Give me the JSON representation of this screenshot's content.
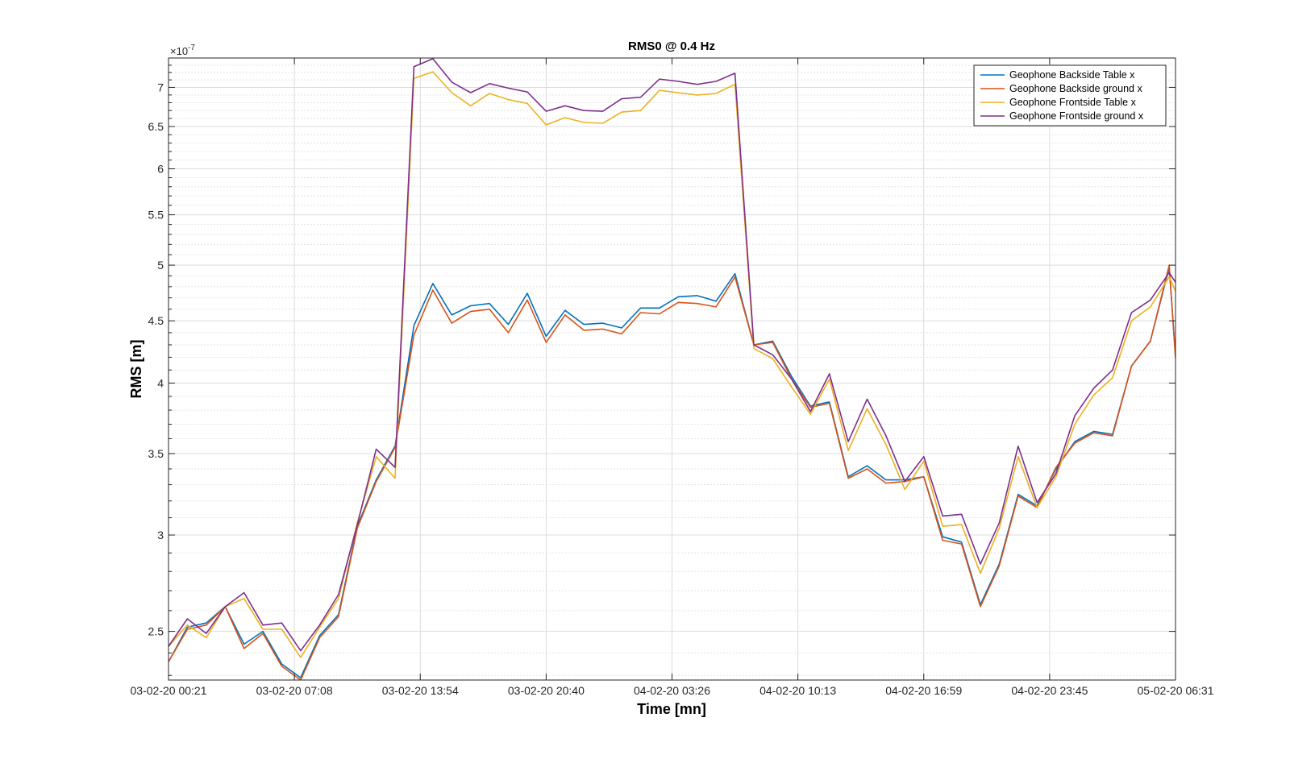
{
  "chart_data": {
    "type": "line",
    "title": "RMS0 @ 0.4 Hz",
    "xlabel": "Time [mn]",
    "ylabel": "RMS [m]",
    "y_exponent_label": "×10",
    "y_exponent_power": "-7",
    "y_scale": "log",
    "ylim": [
      2.28,
      7.4
    ],
    "xlim": [
      0,
      80
    ],
    "grid": "on",
    "minor_grid": "on",
    "legend_location": "top-right",
    "x_ticks": [
      {
        "label": "03-02-20 00:21",
        "value": 0
      },
      {
        "label": "03-02-20 07:08",
        "value": 10
      },
      {
        "label": "03-02-20 13:54",
        "value": 20
      },
      {
        "label": "03-02-20 20:40",
        "value": 30
      },
      {
        "label": "04-02-20 03:26",
        "value": 40
      },
      {
        "label": "04-02-20 10:13",
        "value": 50
      },
      {
        "label": "04-02-20 16:59",
        "value": 60
      },
      {
        "label": "04-02-20 23:45",
        "value": 70
      },
      {
        "label": "05-02-20 06:31",
        "value": 80
      }
    ],
    "y_ticks": [
      {
        "label": "2.5",
        "value": 2.5
      },
      {
        "label": "3",
        "value": 3
      },
      {
        "label": "3.5",
        "value": 3.5
      },
      {
        "label": "4",
        "value": 4
      },
      {
        "label": "4.5",
        "value": 4.5
      },
      {
        "label": "5",
        "value": 5
      },
      {
        "label": "5.5",
        "value": 5.5
      },
      {
        "label": "6",
        "value": 6
      },
      {
        "label": "6.5",
        "value": 6.5
      },
      {
        "label": "7",
        "value": 7
      }
    ],
    "y_minor_ticks": [
      2.3,
      2.4,
      2.6,
      2.7,
      2.8,
      2.9,
      3.1,
      3.2,
      3.3,
      3.4,
      3.6,
      3.7,
      3.8,
      3.9,
      4.1,
      4.2,
      4.3,
      4.4,
      4.6,
      4.7,
      4.8,
      4.9,
      5.1,
      5.2,
      5.3,
      5.4,
      5.6,
      5.7,
      5.8,
      5.9,
      6.1,
      6.2,
      6.3,
      6.4,
      6.6,
      6.7,
      6.8,
      6.9,
      7.1,
      7.2,
      7.3
    ],
    "x": [
      0,
      1.5,
      3,
      4.5,
      6,
      7.5,
      9,
      10.5,
      12,
      13.5,
      15,
      16.5,
      18,
      19.5,
      21,
      22.5,
      24,
      25.5,
      27,
      28.5,
      30,
      31.5,
      33,
      34.5,
      36,
      37.5,
      39,
      40.5,
      42,
      43.5,
      45,
      46.5,
      48,
      49.5,
      51,
      52.5,
      54,
      55.5,
      57,
      58.5,
      60,
      61.5,
      63,
      64.5,
      66,
      67.5,
      69,
      70.5,
      72,
      73.5,
      75,
      76.5,
      78,
      79.5,
      80
    ],
    "series": [
      {
        "name": "Geophone Backside Table x",
        "color": "#0072BD",
        "values": [
          2.36,
          2.52,
          2.54,
          2.62,
          2.44,
          2.5,
          2.35,
          2.29,
          2.48,
          2.58,
          3.05,
          3.33,
          3.55,
          4.46,
          4.83,
          4.55,
          4.63,
          4.65,
          4.47,
          4.74,
          4.37,
          4.59,
          4.47,
          4.48,
          4.44,
          4.61,
          4.61,
          4.71,
          4.72,
          4.67,
          4.92,
          4.3,
          4.33,
          4.05,
          3.83,
          3.86,
          3.35,
          3.42,
          3.33,
          3.33,
          3.35,
          2.99,
          2.96,
          2.63,
          2.84,
          3.24,
          3.17,
          3.4,
          3.58,
          3.65,
          3.63,
          4.13,
          4.33,
          4.98,
          4.21
        ]
      },
      {
        "name": "Geophone Backside ground x",
        "color": "#D95319",
        "values": [
          2.36,
          2.51,
          2.53,
          2.62,
          2.42,
          2.49,
          2.34,
          2.28,
          2.47,
          2.57,
          3.04,
          3.32,
          3.54,
          4.38,
          4.77,
          4.48,
          4.58,
          4.6,
          4.4,
          4.68,
          4.32,
          4.55,
          4.42,
          4.43,
          4.39,
          4.57,
          4.56,
          4.66,
          4.65,
          4.62,
          4.89,
          4.3,
          4.32,
          4.03,
          3.82,
          3.85,
          3.34,
          3.4,
          3.31,
          3.32,
          3.35,
          2.97,
          2.95,
          2.62,
          2.83,
          3.23,
          3.16,
          3.41,
          3.57,
          3.64,
          3.62,
          4.13,
          4.33,
          5.0,
          4.19
        ]
      },
      {
        "name": "Geophone Frontside Table x",
        "color": "#EDB120",
        "values": [
          2.43,
          2.53,
          2.47,
          2.62,
          2.66,
          2.51,
          2.51,
          2.38,
          2.52,
          2.66,
          3.07,
          3.48,
          3.34,
          7.12,
          7.21,
          6.93,
          6.76,
          6.92,
          6.84,
          6.79,
          6.52,
          6.61,
          6.55,
          6.54,
          6.68,
          6.7,
          6.96,
          6.93,
          6.9,
          6.92,
          7.04,
          4.27,
          4.19,
          3.97,
          3.77,
          4.03,
          3.52,
          3.81,
          3.56,
          3.27,
          3.45,
          3.05,
          3.06,
          2.79,
          3.04,
          3.48,
          3.16,
          3.35,
          3.7,
          3.91,
          4.04,
          4.5,
          4.62,
          4.89,
          4.76
        ]
      },
      {
        "name": "Geophone Frontside ground x",
        "color": "#7E2F8E",
        "values": [
          2.43,
          2.56,
          2.49,
          2.62,
          2.69,
          2.53,
          2.54,
          2.41,
          2.53,
          2.68,
          3.06,
          3.53,
          3.41,
          7.28,
          7.39,
          7.07,
          6.93,
          7.05,
          6.99,
          6.94,
          6.69,
          6.76,
          6.7,
          6.69,
          6.85,
          6.87,
          7.11,
          7.08,
          7.04,
          7.08,
          7.19,
          4.3,
          4.22,
          4.03,
          3.79,
          4.07,
          3.58,
          3.88,
          3.62,
          3.32,
          3.48,
          3.11,
          3.12,
          2.84,
          3.07,
          3.55,
          3.19,
          3.37,
          3.76,
          3.96,
          4.1,
          4.57,
          4.68,
          4.93,
          4.84
        ]
      }
    ]
  }
}
